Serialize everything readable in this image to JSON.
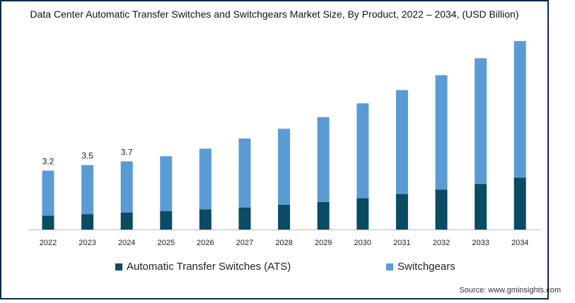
{
  "chart_data": {
    "type": "bar",
    "stacked": true,
    "title": "Data Center Automatic Transfer Switches and Switchgears Market Size, By Product, 2022 – 2034, (USD Billion)",
    "categories": [
      "2022",
      "2023",
      "2024",
      "2025",
      "2026",
      "2027",
      "2028",
      "2029",
      "2030",
      "2031",
      "2032",
      "2033",
      "2034"
    ],
    "series": [
      {
        "name": "Automatic Transfer Switches (ATS)",
        "color": "#0b4b63",
        "values": [
          0.76,
          0.84,
          0.92,
          1.0,
          1.1,
          1.2,
          1.35,
          1.5,
          1.7,
          1.93,
          2.17,
          2.48,
          2.82
        ]
      },
      {
        "name": "Switchgears",
        "color": "#5b9bd5",
        "values": [
          2.44,
          2.66,
          2.78,
          2.98,
          3.29,
          3.74,
          4.12,
          4.6,
          5.15,
          5.64,
          6.21,
          6.82,
          7.41
        ]
      }
    ],
    "data_labels": [
      "3.2",
      "3.5",
      "3.7"
    ],
    "ylim": [
      0,
      11
    ],
    "grid": false,
    "legend": "bottom"
  },
  "source": "Source: www.gminsights.com"
}
